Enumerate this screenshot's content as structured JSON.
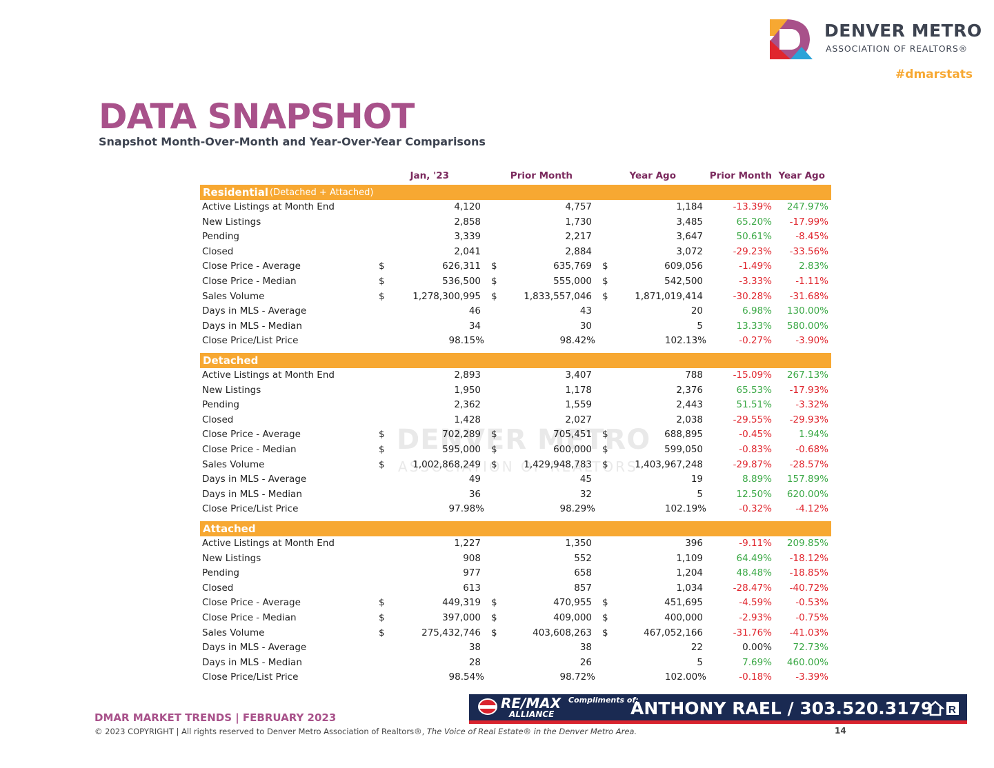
{
  "header": {
    "logo_line1": "DENVER METRO",
    "logo_line2": "ASSOCIATION OF REALTORS®",
    "hashtag": "#dmarstats"
  },
  "title": "DATA SNAPSHOT",
  "subtitle": "Snapshot Month-Over-Month and Year-Over-Year Comparisons",
  "watermark": {
    "line1": "DENVER METRO",
    "line2": "ASSOCIATION OF REALTORS"
  },
  "table": {
    "columns": [
      "Jan, '23",
      "Prior Month",
      "Year Ago",
      "Prior Month",
      "Year Ago"
    ],
    "sections": [
      {
        "name": "Residential",
        "note": "(Detached + Attached)",
        "rows": [
          {
            "label": "Active Listings at Month End",
            "values": [
              "4,120",
              "4,757",
              "1,184",
              "-13.39%",
              "247.97%"
            ]
          },
          {
            "label": "New Listings",
            "values": [
              "2,858",
              "1,730",
              "3,485",
              "65.20%",
              "-17.99%"
            ]
          },
          {
            "label": "Pending",
            "values": [
              "3,339",
              "2,217",
              "3,647",
              "50.61%",
              "-8.45%"
            ]
          },
          {
            "label": "Closed",
            "values": [
              "2,041",
              "2,884",
              "3,072",
              "-29.23%",
              "-33.56%"
            ]
          },
          {
            "label": "Close Price - Average",
            "currency": "$",
            "values": [
              "626,311",
              "635,769",
              "609,056",
              "-1.49%",
              "2.83%"
            ]
          },
          {
            "label": "Close Price - Median",
            "currency": "$",
            "values": [
              "536,500",
              "555,000",
              "542,500",
              "-3.33%",
              "-1.11%"
            ]
          },
          {
            "label": "Sales Volume",
            "currency": "$",
            "values": [
              "1,278,300,995",
              "1,833,557,046",
              "1,871,019,414",
              "-30.28%",
              "-31.68%"
            ]
          },
          {
            "label": "Days in MLS - Average",
            "values": [
              "46",
              "43",
              "20",
              "6.98%",
              "130.00%"
            ]
          },
          {
            "label": "Days in MLS - Median",
            "values": [
              "34",
              "30",
              "5",
              "13.33%",
              "580.00%"
            ]
          },
          {
            "label": "Close Price/List Price",
            "values": [
              "98.15%",
              "98.42%",
              "102.13%",
              "-0.27%",
              "-3.90%"
            ]
          }
        ]
      },
      {
        "name": "Detached",
        "rows": [
          {
            "label": "Active Listings at Month End",
            "values": [
              "2,893",
              "3,407",
              "788",
              "-15.09%",
              "267.13%"
            ]
          },
          {
            "label": "New Listings",
            "values": [
              "1,950",
              "1,178",
              "2,376",
              "65.53%",
              "-17.93%"
            ]
          },
          {
            "label": "Pending",
            "values": [
              "2,362",
              "1,559",
              "2,443",
              "51.51%",
              "-3.32%"
            ]
          },
          {
            "label": "Closed",
            "values": [
              "1,428",
              "2,027",
              "2,038",
              "-29.55%",
              "-29.93%"
            ]
          },
          {
            "label": "Close Price - Average",
            "currency": "$",
            "values": [
              "702,289",
              "705,451",
              "688,895",
              "-0.45%",
              "1.94%"
            ]
          },
          {
            "label": "Close Price - Median",
            "currency": "$",
            "values": [
              "595,000",
              "600,000",
              "599,050",
              "-0.83%",
              "-0.68%"
            ]
          },
          {
            "label": "Sales Volume",
            "currency": "$",
            "values": [
              "1,002,868,249",
              "1,429,948,783",
              "1,403,967,248",
              "-29.87%",
              "-28.57%"
            ]
          },
          {
            "label": "Days in MLS - Average",
            "values": [
              "49",
              "45",
              "19",
              "8.89%",
              "157.89%"
            ]
          },
          {
            "label": "Days in MLS - Median",
            "values": [
              "36",
              "32",
              "5",
              "12.50%",
              "620.00%"
            ]
          },
          {
            "label": "Close Price/List Price",
            "values": [
              "97.98%",
              "98.29%",
              "102.19%",
              "-0.32%",
              "-4.12%"
            ]
          }
        ]
      },
      {
        "name": "Attached",
        "rows": [
          {
            "label": "Active Listings at Month End",
            "values": [
              "1,227",
              "1,350",
              "396",
              "-9.11%",
              "209.85%"
            ]
          },
          {
            "label": "New Listings",
            "values": [
              "908",
              "552",
              "1,109",
              "64.49%",
              "-18.12%"
            ]
          },
          {
            "label": "Pending",
            "values": [
              "977",
              "658",
              "1,204",
              "48.48%",
              "-18.85%"
            ]
          },
          {
            "label": "Closed",
            "values": [
              "613",
              "857",
              "1,034",
              "-28.47%",
              "-40.72%"
            ]
          },
          {
            "label": "Close Price - Average",
            "currency": "$",
            "values": [
              "449,319",
              "470,955",
              "451,695",
              "-4.59%",
              "-0.53%"
            ]
          },
          {
            "label": "Close Price - Median",
            "currency": "$",
            "values": [
              "397,000",
              "409,000",
              "400,000",
              "-2.93%",
              "-0.75%"
            ]
          },
          {
            "label": "Sales Volume",
            "currency": "$",
            "values": [
              "275,432,746",
              "403,608,263",
              "467,052,166",
              "-31.76%",
              "-41.03%"
            ]
          },
          {
            "label": "Days in MLS - Average",
            "values": [
              "38",
              "38",
              "22",
              "0.00%",
              "72.73%"
            ]
          },
          {
            "label": "Days in MLS - Median",
            "values": [
              "28",
              "26",
              "5",
              "7.69%",
              "460.00%"
            ]
          },
          {
            "label": "Close Price/List Price",
            "values": [
              "98.54%",
              "98.72%",
              "102.00%",
              "-0.18%",
              "-3.39%"
            ]
          }
        ]
      }
    ]
  },
  "footer": {
    "trends": "DMAR MARKET TRENDS | FEBRUARY 2023",
    "copyright": "© 2023 COPYRIGHT | All rights reserved to Denver Metro Association of Realtors®,",
    "tagline": "The Voice of Real Estate® in the Denver Metro Area.",
    "page": "14"
  },
  "banner": {
    "brand": "RE/MAX",
    "office": "ALLIANCE",
    "compliments": "Compliments of:",
    "agent": "ANTHONY RAEL / 303.520.3179"
  }
}
